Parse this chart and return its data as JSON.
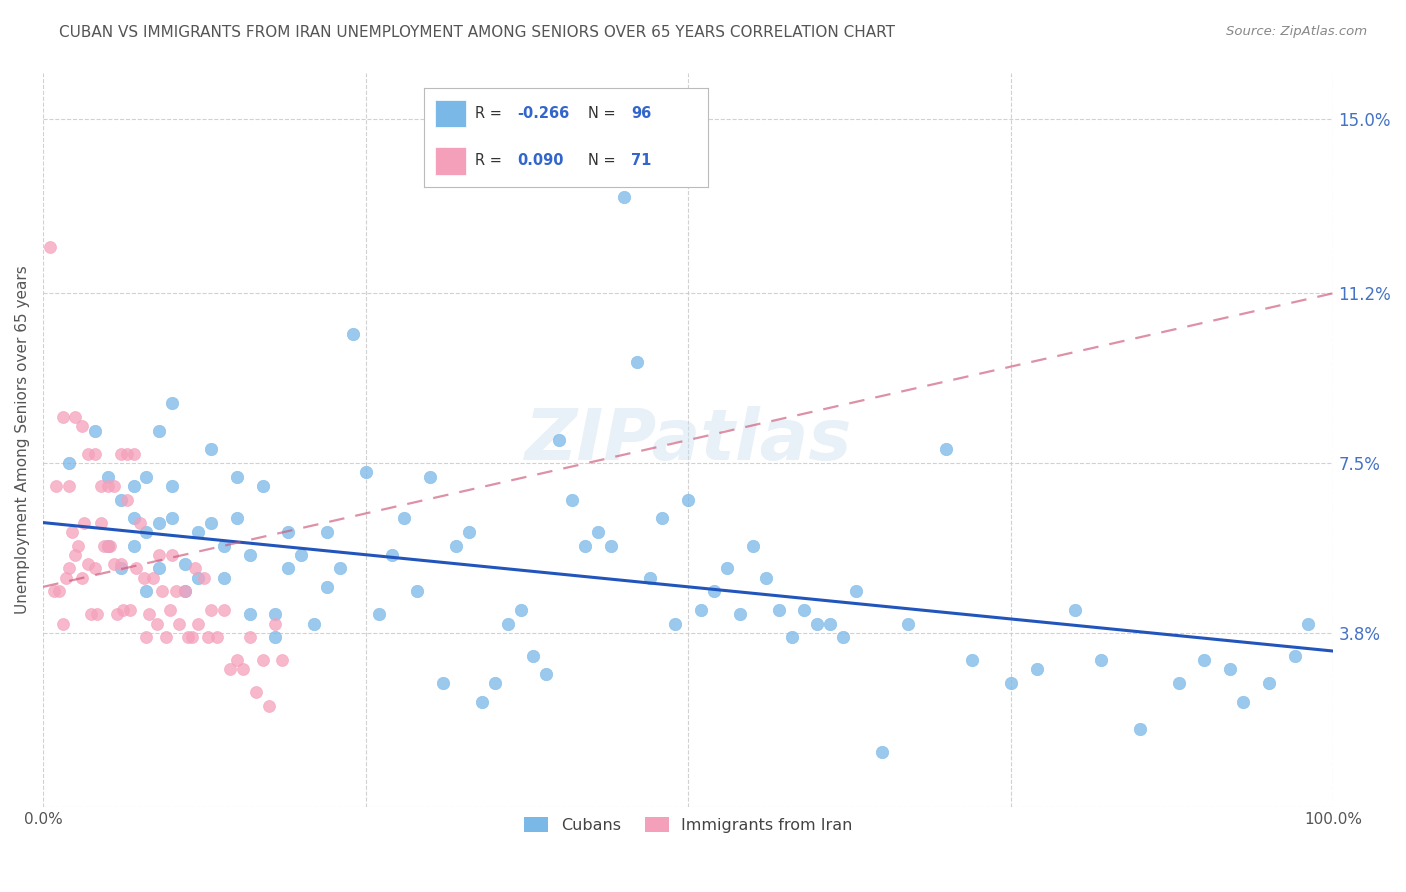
{
  "title": "CUBAN VS IMMIGRANTS FROM IRAN UNEMPLOYMENT AMONG SENIORS OVER 65 YEARS CORRELATION CHART",
  "source": "Source: ZipAtlas.com",
  "ylabel": "Unemployment Among Seniors over 65 years",
  "yticks": [
    0.0,
    0.038,
    0.075,
    0.112,
    0.15
  ],
  "ytick_labels_right": [
    "",
    "3.8%",
    "7.5%",
    "11.2%",
    "15.0%"
  ],
  "xlim": [
    0.0,
    1.0
  ],
  "ylim": [
    0.0,
    0.16
  ],
  "legend_r1": "-0.266",
  "legend_n1": "96",
  "legend_r2": "0.090",
  "legend_n2": "71",
  "blue_color": "#7ab8e8",
  "pink_color": "#f5a0bb",
  "trend_blue_color": "#2255bb",
  "trend_pink_color": "#cc5577",
  "background_color": "#ffffff",
  "grid_color": "#cccccc",
  "title_color": "#555555",
  "watermark": "ZIPatlas",
  "cubans_x": [
    0.02,
    0.04,
    0.05,
    0.05,
    0.06,
    0.06,
    0.07,
    0.07,
    0.07,
    0.08,
    0.08,
    0.08,
    0.09,
    0.09,
    0.09,
    0.1,
    0.1,
    0.1,
    0.11,
    0.11,
    0.12,
    0.12,
    0.13,
    0.13,
    0.14,
    0.14,
    0.15,
    0.15,
    0.16,
    0.16,
    0.17,
    0.18,
    0.18,
    0.19,
    0.19,
    0.2,
    0.21,
    0.22,
    0.22,
    0.23,
    0.24,
    0.25,
    0.26,
    0.27,
    0.28,
    0.29,
    0.3,
    0.31,
    0.32,
    0.33,
    0.34,
    0.35,
    0.36,
    0.37,
    0.38,
    0.39,
    0.4,
    0.41,
    0.42,
    0.43,
    0.44,
    0.45,
    0.46,
    0.47,
    0.48,
    0.49,
    0.5,
    0.51,
    0.52,
    0.53,
    0.54,
    0.55,
    0.56,
    0.57,
    0.58,
    0.59,
    0.6,
    0.61,
    0.62,
    0.63,
    0.65,
    0.67,
    0.7,
    0.72,
    0.75,
    0.77,
    0.8,
    0.82,
    0.85,
    0.88,
    0.9,
    0.92,
    0.93,
    0.95,
    0.97,
    0.98
  ],
  "cubans_y": [
    0.075,
    0.082,
    0.057,
    0.072,
    0.052,
    0.067,
    0.057,
    0.063,
    0.07,
    0.072,
    0.06,
    0.047,
    0.082,
    0.052,
    0.062,
    0.088,
    0.063,
    0.07,
    0.053,
    0.047,
    0.05,
    0.06,
    0.078,
    0.062,
    0.05,
    0.057,
    0.063,
    0.072,
    0.042,
    0.055,
    0.07,
    0.037,
    0.042,
    0.052,
    0.06,
    0.055,
    0.04,
    0.048,
    0.06,
    0.052,
    0.103,
    0.073,
    0.042,
    0.055,
    0.063,
    0.047,
    0.072,
    0.027,
    0.057,
    0.06,
    0.023,
    0.027,
    0.04,
    0.043,
    0.033,
    0.029,
    0.08,
    0.067,
    0.057,
    0.06,
    0.057,
    0.133,
    0.097,
    0.05,
    0.063,
    0.04,
    0.067,
    0.043,
    0.047,
    0.052,
    0.042,
    0.057,
    0.05,
    0.043,
    0.037,
    0.043,
    0.04,
    0.04,
    0.037,
    0.047,
    0.012,
    0.04,
    0.078,
    0.032,
    0.027,
    0.03,
    0.043,
    0.032,
    0.017,
    0.027,
    0.032,
    0.03,
    0.023,
    0.027,
    0.033,
    0.04
  ],
  "iran_x": [
    0.005,
    0.008,
    0.01,
    0.012,
    0.015,
    0.015,
    0.018,
    0.02,
    0.02,
    0.022,
    0.025,
    0.025,
    0.027,
    0.03,
    0.03,
    0.032,
    0.035,
    0.035,
    0.037,
    0.04,
    0.04,
    0.042,
    0.045,
    0.045,
    0.047,
    0.05,
    0.05,
    0.052,
    0.055,
    0.055,
    0.057,
    0.06,
    0.06,
    0.062,
    0.065,
    0.065,
    0.067,
    0.07,
    0.072,
    0.075,
    0.078,
    0.08,
    0.082,
    0.085,
    0.088,
    0.09,
    0.092,
    0.095,
    0.098,
    0.1,
    0.103,
    0.105,
    0.11,
    0.112,
    0.115,
    0.118,
    0.12,
    0.125,
    0.128,
    0.13,
    0.135,
    0.14,
    0.145,
    0.15,
    0.155,
    0.16,
    0.165,
    0.17,
    0.175,
    0.18,
    0.185
  ],
  "iran_y": [
    0.122,
    0.047,
    0.07,
    0.047,
    0.04,
    0.085,
    0.05,
    0.07,
    0.052,
    0.06,
    0.085,
    0.055,
    0.057,
    0.083,
    0.05,
    0.062,
    0.077,
    0.053,
    0.042,
    0.077,
    0.052,
    0.042,
    0.07,
    0.062,
    0.057,
    0.07,
    0.057,
    0.057,
    0.07,
    0.053,
    0.042,
    0.077,
    0.053,
    0.043,
    0.077,
    0.067,
    0.043,
    0.077,
    0.052,
    0.062,
    0.05,
    0.037,
    0.042,
    0.05,
    0.04,
    0.055,
    0.047,
    0.037,
    0.043,
    0.055,
    0.047,
    0.04,
    0.047,
    0.037,
    0.037,
    0.052,
    0.04,
    0.05,
    0.037,
    0.043,
    0.037,
    0.043,
    0.03,
    0.032,
    0.03,
    0.037,
    0.025,
    0.032,
    0.022,
    0.04,
    0.032
  ],
  "blue_trend_x": [
    0.0,
    1.0
  ],
  "blue_trend_y": [
    0.062,
    0.034
  ],
  "pink_trend_x": [
    0.0,
    1.0
  ],
  "pink_trend_y": [
    0.048,
    0.112
  ]
}
